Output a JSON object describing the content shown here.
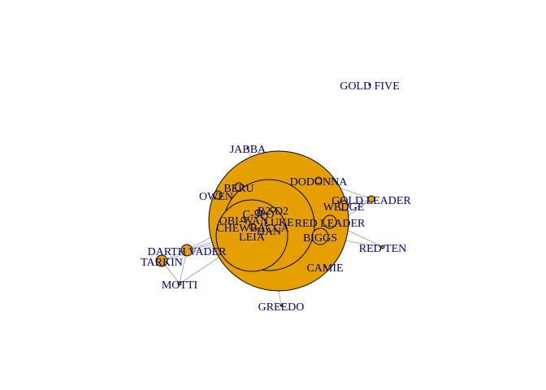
{
  "graph": {
    "node_color": "#E69F00",
    "label_color": "#00008B",
    "edge_color": "#9a9a9a",
    "nodes": [
      {
        "id": "GOLD FIVE"
      },
      {
        "id": "JABBA"
      },
      {
        "id": "DODONNA"
      },
      {
        "id": "BERU"
      },
      {
        "id": "OWEN"
      },
      {
        "id": "GOLD LEADER"
      },
      {
        "id": "WEDGE"
      },
      {
        "id": "R2-D2"
      },
      {
        "id": "C-3PO"
      },
      {
        "id": "OBI-WAN"
      },
      {
        "id": "LUKE"
      },
      {
        "id": "RED LEADER"
      },
      {
        "id": "CHEWBACCA"
      },
      {
        "id": "HAN"
      },
      {
        "id": "LEIA"
      },
      {
        "id": "BIGGS"
      },
      {
        "id": "RED TEN"
      },
      {
        "id": "DARTH VADER"
      },
      {
        "id": "TARKIN"
      },
      {
        "id": "CAMIE"
      },
      {
        "id": "MOTTI"
      },
      {
        "id": "GREEDO"
      }
    ],
    "edges": [
      [
        "LUKE",
        "R2-D2"
      ],
      [
        "LUKE",
        "C-3PO"
      ],
      [
        "LUKE",
        "OBI-WAN"
      ],
      [
        "LUKE",
        "HAN"
      ],
      [
        "LUKE",
        "LEIA"
      ],
      [
        "LUKE",
        "CHEWBACCA"
      ],
      [
        "LUKE",
        "BERU"
      ],
      [
        "LUKE",
        "OWEN"
      ],
      [
        "LUKE",
        "BIGGS"
      ],
      [
        "LUKE",
        "RED LEADER"
      ],
      [
        "LUKE",
        "WEDGE"
      ],
      [
        "LUKE",
        "DODONNA"
      ],
      [
        "LUKE",
        "CAMIE"
      ],
      [
        "LUKE",
        "DARTH VADER"
      ],
      [
        "HAN",
        "GREEDO"
      ],
      [
        "HAN",
        "JABBA"
      ],
      [
        "HAN",
        "CHEWBACCA"
      ],
      [
        "HAN",
        "LEIA"
      ],
      [
        "LEIA",
        "DARTH VADER"
      ],
      [
        "LEIA",
        "TARKIN"
      ],
      [
        "LEIA",
        "MOTTI"
      ],
      [
        "DARTH VADER",
        "TARKIN"
      ],
      [
        "DARTH VADER",
        "MOTTI"
      ],
      [
        "TARKIN",
        "MOTTI"
      ],
      [
        "RED LEADER",
        "GOLD LEADER"
      ],
      [
        "RED LEADER",
        "RED TEN"
      ],
      [
        "BIGGS",
        "RED TEN"
      ],
      [
        "WEDGE",
        "GOLD LEADER"
      ],
      [
        "BIGGS",
        "GOLD LEADER"
      ],
      [
        "DODONNA",
        "GOLD LEADER"
      ],
      [
        "OBI-WAN",
        "DARTH VADER"
      ],
      [
        "C-3PO",
        "R2-D2"
      ],
      [
        "BIGGS",
        "CAMIE"
      ],
      [
        "OWEN",
        "BERU"
      ]
    ]
  }
}
